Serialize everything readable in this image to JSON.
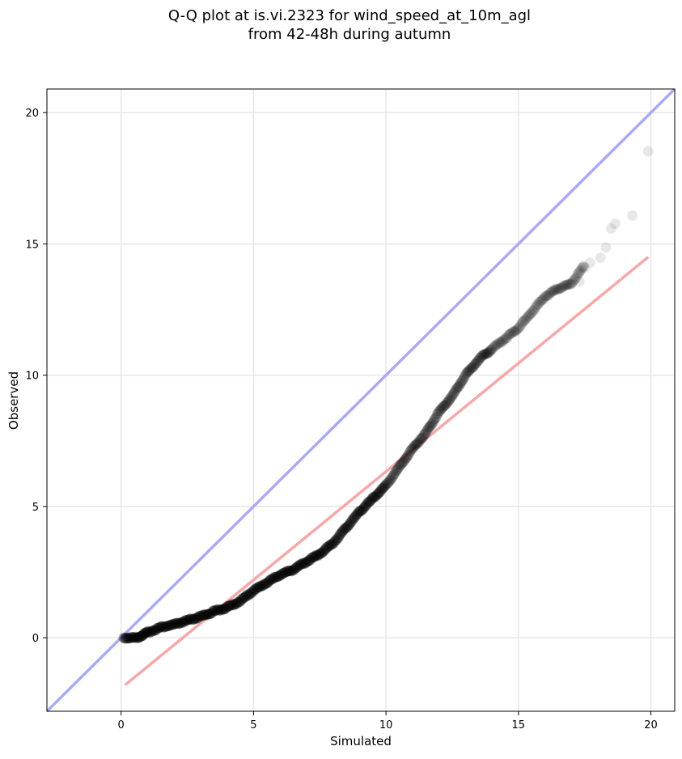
{
  "chart_data": {
    "type": "scatter",
    "title_lines": [
      "Q-Q plot at is.vi.2323 for wind_speed_at_10m_agl",
      "from 42-48h during autumn"
    ],
    "xlabel": "Simulated",
    "ylabel": "Observed",
    "xlim": [
      -2.8,
      20.9
    ],
    "ylim": [
      -2.8,
      20.9
    ],
    "x_ticks": [
      0,
      5,
      10,
      15,
      20
    ],
    "y_ticks": [
      0,
      5,
      10,
      15,
      20
    ],
    "grid": true,
    "reference_lines": [
      {
        "kind": "identity",
        "color": "#aaaaf5",
        "points": [
          [
            -2.8,
            -2.8
          ],
          [
            20.9,
            20.9
          ]
        ]
      },
      {
        "kind": "fit",
        "color": "#f5a8a8",
        "points": [
          [
            0.15,
            -1.8
          ],
          [
            19.9,
            14.5
          ]
        ]
      }
    ],
    "point_color": "#000000",
    "quantile_curve": [
      [
        0.1,
        0.0
      ],
      [
        0.6,
        0.0
      ],
      [
        1.0,
        0.2
      ],
      [
        1.5,
        0.4
      ],
      [
        2.0,
        0.5
      ],
      [
        2.5,
        0.65
      ],
      [
        3.0,
        0.8
      ],
      [
        3.5,
        1.0
      ],
      [
        4.0,
        1.15
      ],
      [
        4.5,
        1.4
      ],
      [
        5.0,
        1.8
      ],
      [
        5.5,
        2.1
      ],
      [
        6.0,
        2.4
      ],
      [
        6.5,
        2.6
      ],
      [
        7.0,
        2.9
      ],
      [
        7.5,
        3.2
      ],
      [
        8.0,
        3.6
      ],
      [
        8.5,
        4.2
      ],
      [
        9.0,
        4.8
      ],
      [
        9.5,
        5.3
      ],
      [
        10.0,
        5.8
      ],
      [
        10.5,
        6.5
      ],
      [
        11.0,
        7.2
      ],
      [
        11.5,
        7.8
      ],
      [
        12.0,
        8.6
      ],
      [
        12.5,
        9.2
      ],
      [
        13.0,
        10.0
      ],
      [
        13.5,
        10.6
      ],
      [
        14.0,
        11.0
      ],
      [
        14.5,
        11.4
      ],
      [
        15.0,
        11.8
      ],
      [
        15.5,
        12.4
      ],
      [
        16.0,
        13.0
      ],
      [
        16.5,
        13.3
      ],
      [
        17.0,
        13.5
      ],
      [
        17.5,
        14.2
      ]
    ],
    "tail_points": [
      [
        17.3,
        13.6
      ],
      [
        17.5,
        14.1
      ],
      [
        17.7,
        14.3
      ],
      [
        18.1,
        14.5
      ],
      [
        18.3,
        14.9
      ],
      [
        18.5,
        15.6
      ],
      [
        18.65,
        15.8
      ],
      [
        19.3,
        16.1
      ],
      [
        19.9,
        18.5
      ]
    ]
  }
}
